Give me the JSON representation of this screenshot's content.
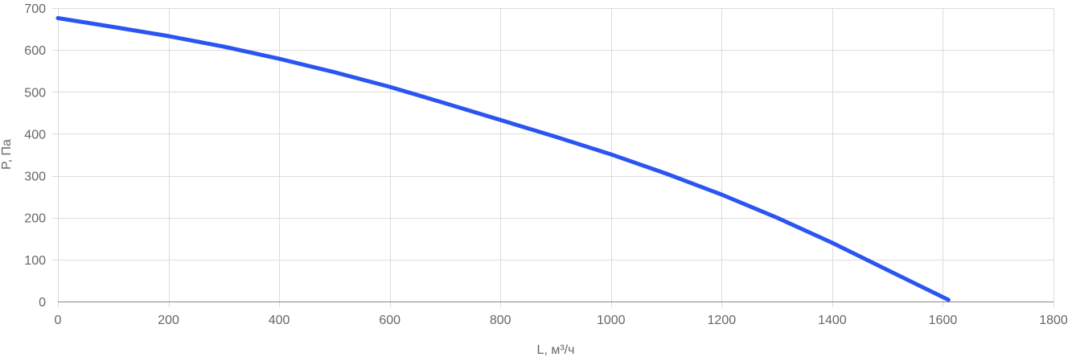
{
  "chart_data": {
    "type": "line",
    "title": "",
    "xlabel": "L, м³/ч",
    "ylabel": "P, Па",
    "xlim": [
      0,
      1800
    ],
    "ylim": [
      0,
      700
    ],
    "x_ticks": [
      0,
      200,
      400,
      600,
      800,
      1000,
      1200,
      1400,
      1600,
      1800
    ],
    "y_ticks": [
      0,
      100,
      200,
      300,
      400,
      500,
      600,
      700
    ],
    "grid": true,
    "legend": "none",
    "series": [
      {
        "color": "#2b55f0",
        "x": [
          0,
          100,
          200,
          300,
          400,
          500,
          600,
          700,
          800,
          900,
          1000,
          1100,
          1200,
          1300,
          1400,
          1500,
          1610
        ],
        "y": [
          676,
          655,
          633,
          608,
          579,
          547,
          512,
          473,
          433,
          393,
          351,
          305,
          255,
          200,
          140,
          75,
          4
        ]
      }
    ]
  }
}
